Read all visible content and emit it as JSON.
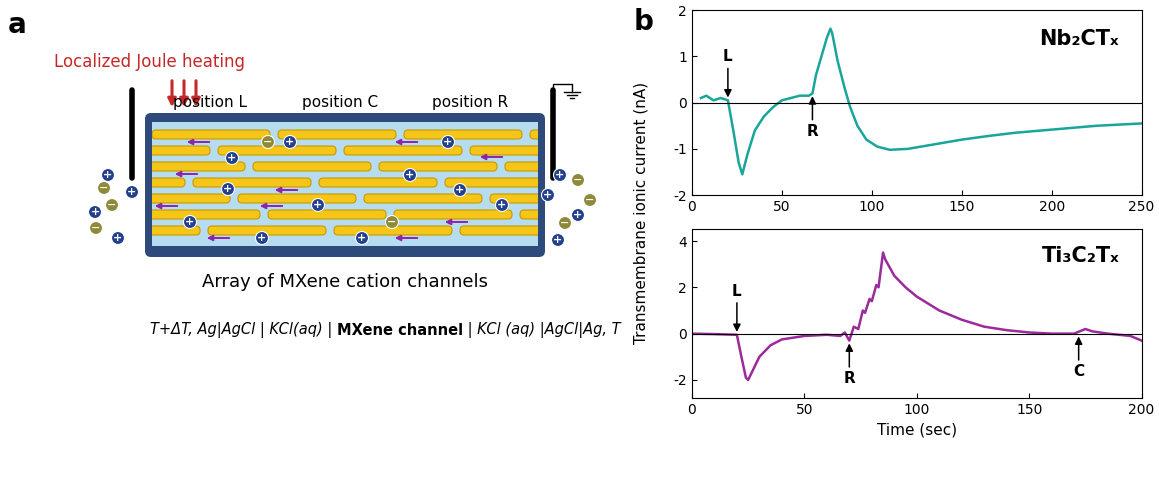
{
  "diagram": {
    "panel_label": "a",
    "heating": "Localized Joule heating",
    "positions": [
      "position L",
      "position C",
      "position R"
    ],
    "caption": "Array of MXene cation channels",
    "cell_notation": [
      "T+ΔT, Ag|AgCl | KCl(aq) | ",
      "MXene channel",
      " | KCl (aq) |AgCl|Ag, T"
    ],
    "ion_signs": {
      "cation": "+",
      "anion": "−"
    }
  },
  "chart_panel_label": "b",
  "y_label": "Transmembrane ionic current (nA)",
  "chart_data": [
    {
      "type": "line",
      "title": "Nb₂CTₓ",
      "color": "#1aa59a",
      "x": [
        5,
        8,
        12,
        16,
        20,
        23,
        26,
        28,
        31,
        35,
        40,
        45,
        50,
        55,
        60,
        65,
        67,
        69,
        72,
        75,
        77,
        78,
        81,
        85,
        88,
        92,
        97,
        103,
        110,
        120,
        135,
        150,
        165,
        180,
        195,
        210,
        225,
        240,
        250
      ],
      "values": [
        0.1,
        0.15,
        0.05,
        0.1,
        0.05,
        -0.6,
        -1.3,
        -1.55,
        -1.1,
        -0.6,
        -0.3,
        -0.1,
        0.05,
        0.1,
        0.15,
        0.15,
        0.2,
        0.6,
        1.0,
        1.4,
        1.6,
        1.5,
        0.9,
        0.3,
        -0.1,
        -0.5,
        -0.8,
        -0.95,
        -1.02,
        -1.0,
        -0.9,
        -0.8,
        -0.72,
        -0.65,
        -0.6,
        -0.55,
        -0.5,
        -0.47,
        -0.45
      ],
      "xlim": [
        0,
        250
      ],
      "xticks": [
        0,
        50,
        100,
        150,
        200,
        250
      ],
      "ylim": [
        -2,
        2
      ],
      "yticks": [
        -2,
        -1,
        0,
        1,
        2
      ],
      "reference_line": 0,
      "annotations": [
        {
          "text": "L",
          "x": 20,
          "y": 0.05
        },
        {
          "text": "R",
          "x": 67,
          "y": 0.2
        }
      ]
    },
    {
      "type": "line",
      "title": "Ti₃C₂Tₓ",
      "color": "#9b2a9c",
      "xlabel": "Time (sec)",
      "x": [
        0,
        10,
        20,
        22,
        24,
        25,
        27,
        30,
        35,
        40,
        50,
        60,
        66,
        68,
        70,
        72,
        74,
        76,
        77,
        79,
        80,
        82,
        83,
        85,
        86,
        90,
        95,
        100,
        110,
        120,
        130,
        140,
        150,
        160,
        170,
        175,
        178,
        185,
        195,
        200
      ],
      "values": [
        0,
        -0.02,
        -0.05,
        -1.0,
        -1.9,
        -2.0,
        -1.6,
        -1.0,
        -0.5,
        -0.25,
        -0.1,
        -0.05,
        -0.1,
        0.05,
        -0.3,
        0.3,
        0.2,
        1.0,
        0.9,
        1.5,
        1.4,
        2.1,
        2.0,
        3.5,
        3.2,
        2.5,
        2.0,
        1.6,
        1.0,
        0.6,
        0.3,
        0.15,
        0.05,
        0.0,
        0.0,
        0.2,
        0.1,
        0.0,
        -0.1,
        -0.3
      ],
      "xlim": [
        0,
        200
      ],
      "xticks": [
        0,
        50,
        100,
        150,
        200
      ],
      "ylim": [
        -2.8,
        4.5
      ],
      "yticks": [
        -2,
        0,
        2,
        4
      ],
      "reference_line": 0,
      "annotations": [
        {
          "text": "L",
          "x": 20,
          "y": -0.05
        },
        {
          "text": "R",
          "x": 70,
          "y": -0.3
        },
        {
          "text": "C",
          "x": 172,
          "y": 0.0
        }
      ]
    }
  ]
}
